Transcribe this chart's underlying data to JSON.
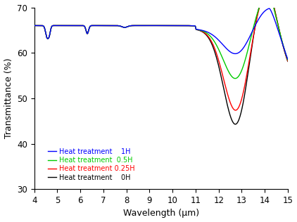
{
  "title": "",
  "xlabel": "Wavelength (μm)",
  "ylabel": "Transmittance (%)",
  "xlim": [
    4,
    15
  ],
  "ylim": [
    30,
    70
  ],
  "yticks": [
    30,
    40,
    50,
    60,
    70
  ],
  "xticks": [
    4,
    5,
    6,
    7,
    8,
    9,
    10,
    11,
    12,
    13,
    14,
    15
  ],
  "legend": [
    {
      "label": "Heat treatment    1H",
      "color": "#0000FF"
    },
    {
      "label": "Heat treatment  0.5H",
      "color": "#00CC00"
    },
    {
      "label": "Heat treatment 0.25H",
      "color": "#FF0000"
    },
    {
      "label": "Heat treatment    0H",
      "color": "#000000"
    }
  ],
  "background_color": "#ffffff"
}
